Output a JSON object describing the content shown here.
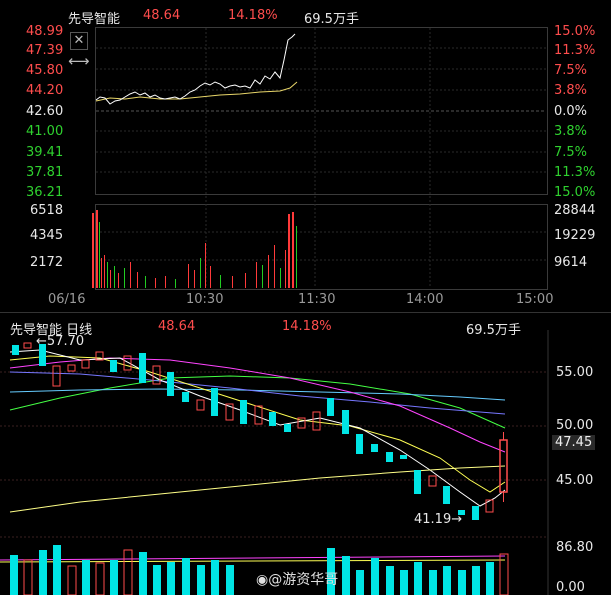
{
  "intraday": {
    "name": "先导智能",
    "price": "48.64",
    "change_pct": "14.18%",
    "volume": "69.5万手",
    "price_axis_left": [
      "48.99",
      "47.39",
      "45.80",
      "44.20",
      "42.60",
      "41.00",
      "39.41",
      "37.81",
      "36.21"
    ],
    "pct_axis_right": [
      "15.0%",
      "11.3%",
      "7.5%",
      "3.8%",
      "0.0%",
      "3.8%",
      "7.5%",
      "11.3%",
      "15.0%"
    ],
    "vol_axis_left": [
      "6518",
      "4345",
      "2172"
    ],
    "vol_axis_right": [
      "28844",
      "19229",
      "9614"
    ],
    "time_axis": [
      "06/16",
      "10:30",
      "11:30",
      "14:00",
      "15:00"
    ]
  },
  "daily": {
    "title": "先导智能 日线",
    "price": "48.64",
    "change_pct": "14.18%",
    "volume": "69.5万手",
    "high_marker": "57.70",
    "low_marker": "41.19",
    "price_axis": [
      "55.00",
      "50.00",
      "45.00"
    ],
    "current_price_tag": "47.45",
    "vol_axis_top": "86.80",
    "vol_axis_bottom": "0.00"
  },
  "watermark": "@游资华哥",
  "colors": {
    "up": "#ff4d4d",
    "down": "#00e5e5",
    "flat": "#e8e8e8",
    "ma5": "#ffffff",
    "ma10": "#ffff55",
    "ma20": "#ff44ff",
    "ma60": "#44ff44"
  }
}
